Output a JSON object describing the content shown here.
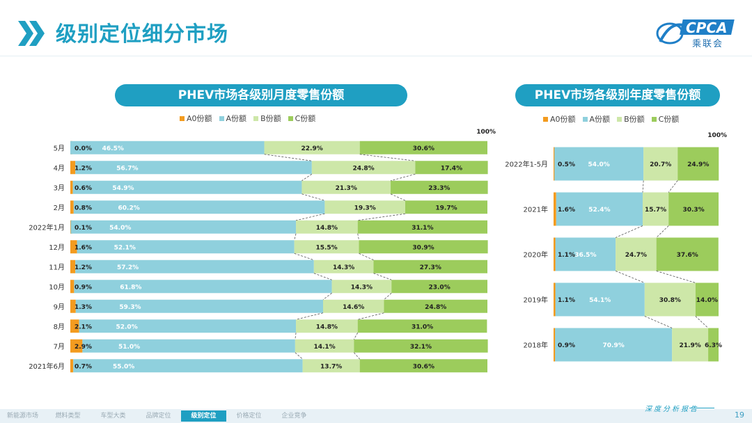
{
  "header": {
    "title": "级别定位细分市场"
  },
  "logo": {
    "text": "CPCA",
    "subtitle": "乘联会"
  },
  "colors": {
    "a0": "#f39b1f",
    "a": "#8fd0dd",
    "b": "#cde7a8",
    "c": "#9ccc5c",
    "accent": "#1f9fc2"
  },
  "chart_data": [
    {
      "type": "bar",
      "stacked": true,
      "orientation": "horizontal",
      "title": "PHEV市场各级别月度零售份额",
      "top_label": "100%",
      "categories": [
        "5月",
        "4月",
        "3月",
        "2月",
        "2022年1月",
        "12月",
        "11月",
        "10月",
        "9月",
        "8月",
        "7月",
        "2021年6月"
      ],
      "series": [
        {
          "name": "A0份额",
          "color": "#f39b1f",
          "values": [
            0.0,
            1.2,
            0.6,
            0.8,
            0.1,
            1.6,
            1.2,
            0.9,
            1.3,
            2.1,
            2.9,
            0.7
          ],
          "labels": [
            "0.0%",
            "1.2%",
            "0.6%",
            "0.8%",
            "0.1%",
            "1.6%",
            "1.2%",
            "0.9%",
            "1.3%",
            "2.1%",
            "2.9%",
            "0.7%"
          ]
        },
        {
          "name": "A份额",
          "color": "#8fd0dd",
          "values": [
            46.5,
            56.7,
            54.9,
            60.2,
            54.0,
            52.1,
            57.2,
            61.8,
            59.3,
            52.0,
            51.0,
            55.0
          ],
          "labels": [
            "46.5%",
            "56.7%",
            "54.9%",
            "60.2%",
            "54.0%",
            "52.1%",
            "57.2%",
            "61.8%",
            "59.3%",
            "52.0%",
            "51.0%",
            "55.0%"
          ]
        },
        {
          "name": "B份额",
          "color": "#cde7a8",
          "values": [
            22.9,
            24.8,
            21.3,
            19.3,
            14.8,
            15.5,
            14.3,
            14.3,
            14.6,
            14.8,
            14.1,
            13.7
          ],
          "labels": [
            "22.9%",
            "24.8%",
            "21.3%",
            "19.3%",
            "14.8%",
            "15.5%",
            "14.3%",
            "14.3%",
            "14.6%",
            "14.8%",
            "14.1%",
            "13.7%"
          ]
        },
        {
          "name": "C份额",
          "color": "#9ccc5c",
          "values": [
            30.6,
            17.4,
            23.3,
            19.7,
            31.1,
            30.9,
            27.3,
            23.0,
            24.8,
            31.0,
            32.1,
            30.6
          ],
          "labels": [
            "30.6%",
            "17.4%",
            "23.3%",
            "19.7%",
            "31.1%",
            "30.9%",
            "27.3%",
            "23.0%",
            "24.8%",
            "31.0%",
            "32.1%",
            "30.6%"
          ]
        }
      ],
      "xlim": [
        0,
        100
      ]
    },
    {
      "type": "bar",
      "stacked": true,
      "orientation": "horizontal",
      "title": "PHEV市场各级别年度零售份额",
      "top_label": "100%",
      "categories": [
        "2022年1-5月",
        "2021年",
        "2020年",
        "2019年",
        "2018年"
      ],
      "series": [
        {
          "name": "A0份额",
          "color": "#f39b1f",
          "values": [
            0.5,
            1.6,
            1.1,
            1.1,
            0.9
          ],
          "labels": [
            "0.5%",
            "1.6%",
            "1.1%",
            "1.1%",
            "0.9%"
          ]
        },
        {
          "name": "A份额",
          "color": "#8fd0dd",
          "values": [
            54.0,
            52.4,
            36.5,
            54.1,
            70.9
          ],
          "labels": [
            "54.0%",
            "52.4%",
            "36.5%",
            "54.1%",
            "70.9%"
          ]
        },
        {
          "name": "B份额",
          "color": "#cde7a8",
          "values": [
            20.7,
            15.7,
            24.7,
            30.8,
            21.9
          ],
          "labels": [
            "20.7%",
            "15.7%",
            "24.7%",
            "30.8%",
            "21.9%"
          ]
        },
        {
          "name": "C份额",
          "color": "#9ccc5c",
          "values": [
            24.9,
            30.3,
            37.6,
            14.0,
            6.3
          ],
          "labels": [
            "24.9%",
            "30.3%",
            "37.6%",
            "14.0%",
            "6.3%"
          ]
        }
      ],
      "xlim": [
        0,
        100
      ]
    }
  ],
  "footer": {
    "nav": [
      "新能源市场",
      "燃料类型",
      "车型大类",
      "品牌定位",
      "级别定位",
      "价格定位",
      "企业竞争"
    ],
    "active_index": 4,
    "report_label": "深度分析报告",
    "page_number": "19"
  }
}
